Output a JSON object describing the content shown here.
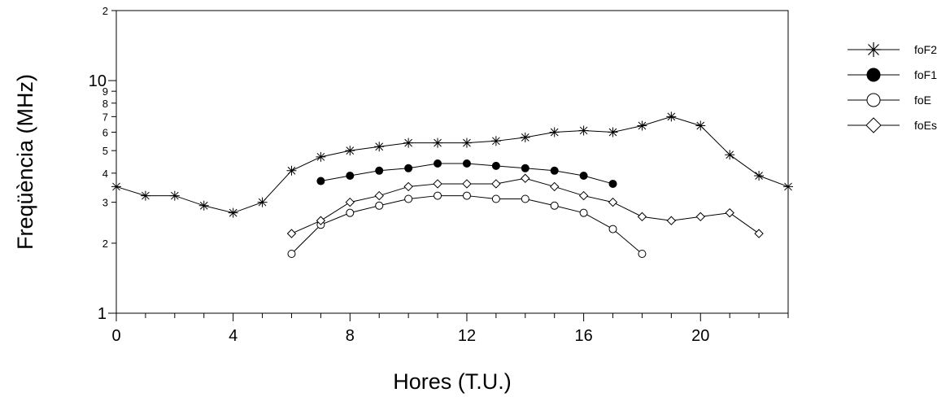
{
  "chart_data": {
    "type": "line",
    "xlabel": "Hores (T.U.)",
    "ylabel": "Freqüència (MHz)",
    "x_scale": "linear",
    "y_scale": "log",
    "xlim": [
      0,
      23
    ],
    "ylim": [
      1,
      20
    ],
    "x_ticks": [
      0,
      4,
      8,
      12,
      16,
      20
    ],
    "x_tick_labels": [
      "0",
      "4",
      "8",
      "12",
      "16",
      "20"
    ],
    "y_major_ticks": [
      1,
      10
    ],
    "y_major_tick_labels": [
      "1",
      "10"
    ],
    "y_minor_ticks": [
      2,
      3,
      4,
      5,
      6,
      7,
      8,
      9,
      20
    ],
    "y_minor_tick_labels": [
      "2",
      "3",
      "4",
      "5",
      "6",
      "7",
      "8",
      "9",
      "2"
    ],
    "grid": false,
    "legend_position": "right",
    "series": [
      {
        "name": "foF2",
        "marker": "asterisk",
        "x": [
          0,
          1,
          2,
          3,
          4,
          5,
          6,
          7,
          8,
          9,
          10,
          11,
          12,
          13,
          14,
          15,
          16,
          17,
          18,
          19,
          20,
          21,
          22,
          23
        ],
        "values": [
          3.5,
          3.2,
          3.2,
          2.9,
          2.7,
          3.0,
          4.1,
          4.7,
          5.0,
          5.2,
          5.4,
          5.4,
          5.4,
          5.5,
          5.7,
          6.0,
          6.1,
          6.0,
          6.4,
          7.0,
          6.4,
          4.8,
          3.9,
          3.5
        ]
      },
      {
        "name": "foF1",
        "marker": "filled-circle",
        "x": [
          7,
          8,
          9,
          10,
          11,
          12,
          13,
          14,
          15,
          16,
          17
        ],
        "values": [
          3.7,
          3.9,
          4.1,
          4.2,
          4.4,
          4.4,
          4.3,
          4.2,
          4.1,
          3.9,
          3.6
        ]
      },
      {
        "name": "foE",
        "marker": "open-circle",
        "x": [
          6,
          7,
          8,
          9,
          10,
          11,
          12,
          13,
          14,
          15,
          16,
          17,
          18
        ],
        "values": [
          1.8,
          2.4,
          2.7,
          2.9,
          3.1,
          3.2,
          3.2,
          3.1,
          3.1,
          2.9,
          2.7,
          2.3,
          1.8
        ]
      },
      {
        "name": "foEs",
        "marker": "diamond",
        "x": [
          6,
          7,
          8,
          9,
          10,
          11,
          12,
          13,
          14,
          15,
          16,
          17,
          18,
          19,
          20,
          21,
          22
        ],
        "values": [
          2.2,
          2.5,
          3.0,
          3.2,
          3.5,
          3.6,
          3.6,
          3.6,
          3.8,
          3.5,
          3.2,
          3.0,
          2.6,
          2.5,
          2.6,
          2.7,
          2.2
        ]
      }
    ]
  }
}
